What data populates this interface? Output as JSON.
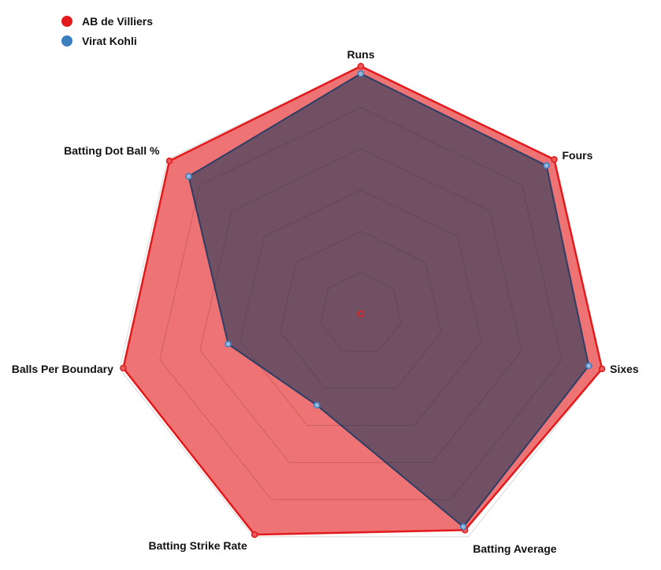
{
  "chart_data": {
    "type": "radar",
    "axes": [
      "Runs",
      "Fours",
      "Sixes",
      "Batting Average",
      "Batting Strike Rate",
      "Balls Per Boundary",
      "Batting Dot Ball %"
    ],
    "scale": {
      "min": 0,
      "max": 1
    },
    "grid_levels": 6,
    "series": [
      {
        "name": "AB de Villiers",
        "color": "#e31a1c",
        "fill": "#eb5a5c",
        "values": [
          1.0,
          1.0,
          1.0,
          0.97,
          0.99,
          0.985,
          0.99
        ]
      },
      {
        "name": "Virat Kohli",
        "color": "#3a7ebf",
        "line_color": "#2c3e66",
        "fill": "#5a4a62",
        "values": [
          0.97,
          0.96,
          0.945,
          0.955,
          0.41,
          0.55,
          0.89
        ]
      }
    ],
    "legend_position": "top-left"
  }
}
